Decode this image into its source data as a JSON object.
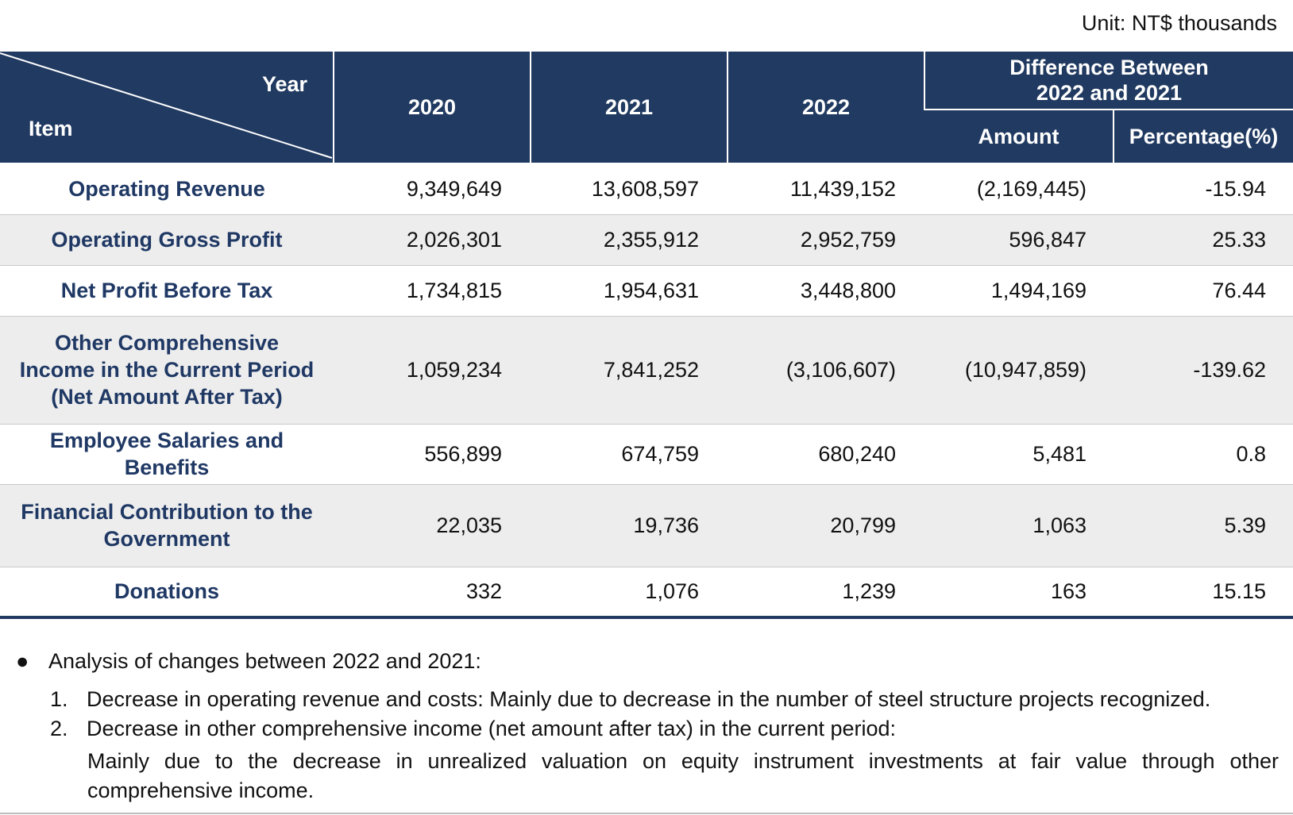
{
  "unit_label": "Unit: NT$ thousands",
  "header": {
    "year_label": "Year",
    "item_label": "Item",
    "years": [
      "2020",
      "2021",
      "2022"
    ],
    "diff_label_line1": "Difference Between",
    "diff_label_line2": "2022 and 2021",
    "amount_label": "Amount",
    "percentage_label": "Percentage(%)"
  },
  "rows": [
    {
      "label_lines": [
        "Operating Revenue"
      ],
      "y2020": "9,349,649",
      "y2021": "13,608,597",
      "y2022": "11,439,152",
      "amount": "(2,169,445)",
      "percentage": "-15.94"
    },
    {
      "label_lines": [
        "Operating Gross Profit"
      ],
      "y2020": "2,026,301",
      "y2021": "2,355,912",
      "y2022": "2,952,759",
      "amount": "596,847",
      "percentage": "25.33"
    },
    {
      "label_lines": [
        "Net Profit Before Tax"
      ],
      "y2020": "1,734,815",
      "y2021": "1,954,631",
      "y2022": "3,448,800",
      "amount": "1,494,169",
      "percentage": "76.44"
    },
    {
      "label_lines": [
        "Other Comprehensive",
        "Income in the Current Period",
        "(Net Amount After Tax)"
      ],
      "y2020": "1,059,234",
      "y2021": "7,841,252",
      "y2022": "(3,106,607)",
      "amount": "(10,947,859)",
      "percentage": "-139.62"
    },
    {
      "label_lines": [
        "Employee Salaries and",
        "Benefits"
      ],
      "y2020": "556,899",
      "y2021": "674,759",
      "y2022": "680,240",
      "amount": "5,481",
      "percentage": "0.8"
    },
    {
      "label_lines": [
        "Financial Contribution to the",
        "Government"
      ],
      "y2020": "22,035",
      "y2021": "19,736",
      "y2022": "20,799",
      "amount": "1,063",
      "percentage": "5.39"
    },
    {
      "label_lines": [
        "Donations"
      ],
      "y2020": "332",
      "y2021": "1,076",
      "y2022": "1,239",
      "amount": "163",
      "percentage": "15.15"
    }
  ],
  "notes": {
    "bullet_symbol": "●",
    "bullet_text": "Analysis of changes between 2022 and 2021:",
    "items": [
      {
        "prefix": "1.",
        "text": "Decrease in operating revenue and costs: Mainly due to decrease in the number of steel structure projects recognized."
      },
      {
        "prefix": "2.",
        "text": "Decrease in other comprehensive income (net amount after tax) in the current period:"
      }
    ],
    "item2_continuation": "Mainly due to the decrease in unrealized valuation on equity instrument investments at fair value through other comprehensive income."
  },
  "colors": {
    "header_bg": "#213a61",
    "label_text": "#1f3864",
    "alt_row": "#ededed"
  }
}
